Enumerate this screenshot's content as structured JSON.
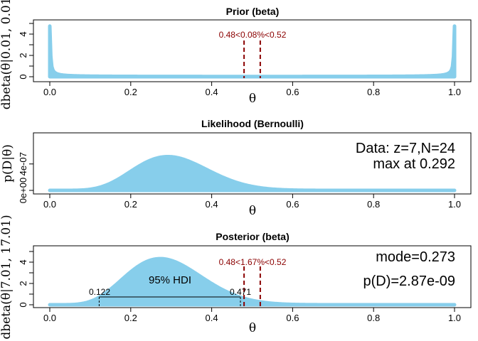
{
  "chart_data": [
    {
      "type": "area",
      "title": "Prior (beta)",
      "xlabel": "θ",
      "ylabel": "dbeta(θ|0.01, 0.01)",
      "xlim": [
        0,
        1
      ],
      "ylim": [
        0,
        5
      ],
      "x_ticks": [
        "0.0",
        "0.2",
        "0.4",
        "0.6",
        "0.8",
        "1.0"
      ],
      "y_ticks": [
        "0",
        "2",
        "4"
      ],
      "distribution": {
        "family": "beta",
        "a": 0.01,
        "b": 0.01
      },
      "fill_color": "#87ceeb",
      "rope": {
        "low": 0.48,
        "high": 0.52,
        "label": "0.48<0.08%<0.52",
        "color": "#8b0000"
      }
    },
    {
      "type": "area",
      "title": "Likelihood (Bernoulli)",
      "xlabel": "θ",
      "ylabel": "p(D|θ)",
      "xlim": [
        0,
        1
      ],
      "ylim": [
        0,
        8.6e-07
      ],
      "x_ticks": [
        "0.0",
        "0.2",
        "0.4",
        "0.6",
        "0.8",
        "1.0"
      ],
      "y_ticks": [
        "0e+00",
        "4e-07"
      ],
      "y_tick_values": [
        0,
        4e-07
      ],
      "data": {
        "z": 7,
        "N": 24
      },
      "fill_color": "#87ceeb",
      "annotations": [
        "Data: z=7,N=24",
        "max at 0.292"
      ]
    },
    {
      "type": "area",
      "title": "Posterior (beta)",
      "xlabel": "θ",
      "ylabel": "dbeta(θ|7.01, 17.01)",
      "xlim": [
        0,
        1
      ],
      "ylim": [
        0,
        5
      ],
      "x_ticks": [
        "0.0",
        "0.2",
        "0.4",
        "0.6",
        "0.8",
        "1.0"
      ],
      "y_ticks": [
        "0",
        "2",
        "4"
      ],
      "distribution": {
        "family": "beta",
        "a": 7.01,
        "b": 17.01
      },
      "fill_color": "#87ceeb",
      "rope": {
        "low": 0.48,
        "high": 0.52,
        "label": "0.48<1.67%<0.52",
        "color": "#8b0000"
      },
      "hdi": {
        "low": 0.122,
        "high": 0.471,
        "low_label": "0.122",
        "high_label": "0.471",
        "label": "95% HDI"
      },
      "annotations": [
        "mode=0.273",
        "p(D)=2.87e-09"
      ]
    }
  ]
}
